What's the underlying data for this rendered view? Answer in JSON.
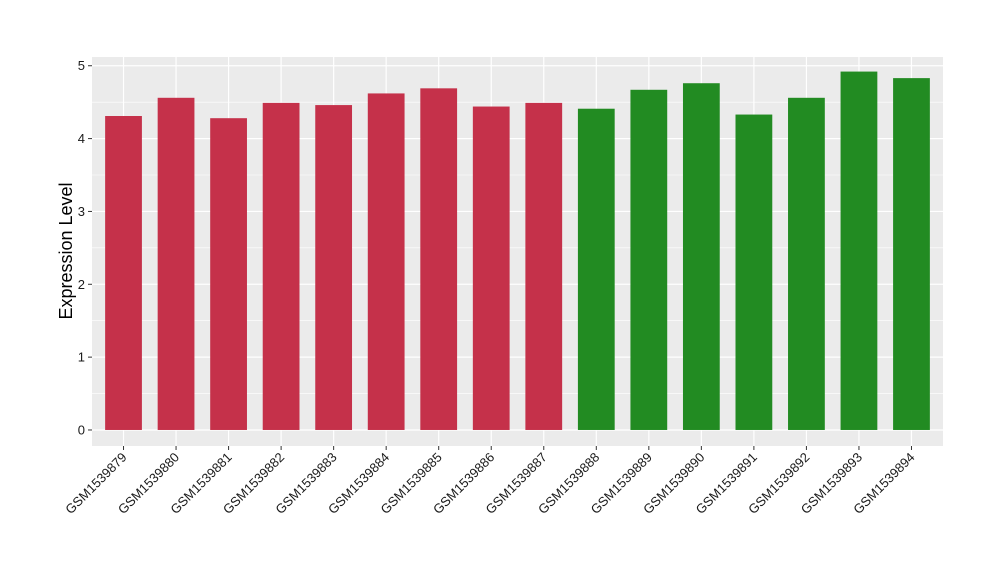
{
  "chart_data": {
    "type": "bar",
    "title": "",
    "xlabel": "",
    "ylabel": "Expression Level",
    "ylim": [
      -0.22,
      5.12
    ],
    "yticks": [
      0,
      1,
      2,
      3,
      4,
      5
    ],
    "grid": true,
    "panel_background": "#ebebeb",
    "grid_color": "#ffffff",
    "categories": [
      "GSM1539879",
      "GSM1539880",
      "GSM1539881",
      "GSM1539882",
      "GSM1539883",
      "GSM1539884",
      "GSM1539885",
      "GSM1539886",
      "GSM1539887",
      "GSM1539888",
      "GSM1539889",
      "GSM1539890",
      "GSM1539891",
      "GSM1539892",
      "GSM1539893",
      "GSM1539894"
    ],
    "values": [
      4.31,
      4.56,
      4.28,
      4.49,
      4.46,
      4.62,
      4.69,
      4.44,
      4.49,
      4.41,
      4.67,
      4.76,
      4.33,
      4.56,
      4.92,
      4.83
    ],
    "bar_colors": [
      "#c5314a",
      "#c5314a",
      "#c5314a",
      "#c5314a",
      "#c5314a",
      "#c5314a",
      "#c5314a",
      "#c5314a",
      "#c5314a",
      "#228b22",
      "#228b22",
      "#228b22",
      "#228b22",
      "#228b22",
      "#228b22",
      "#228b22"
    ]
  }
}
